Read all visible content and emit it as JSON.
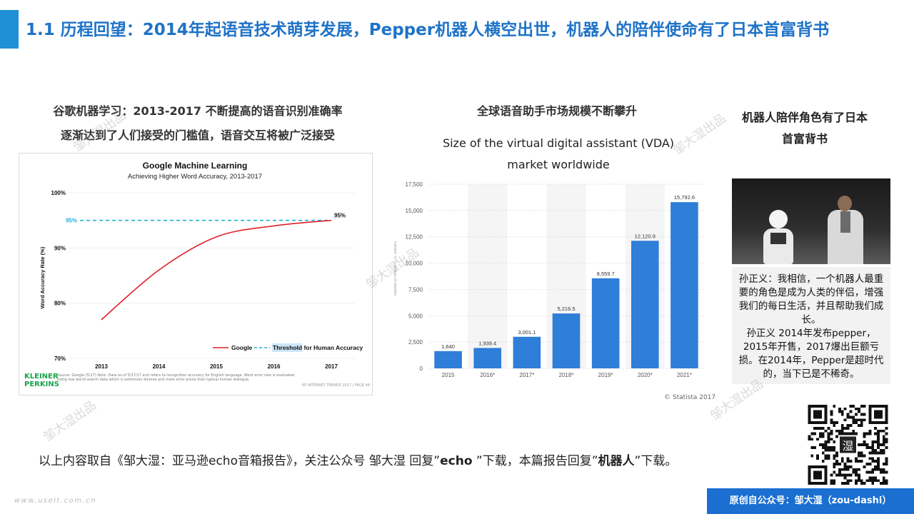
{
  "title": "1.1 历程回望：2014年起语音技术萌芽发展，Pepper机器人横空出世，机器人的陪伴使命有了日本首富背书",
  "left_section": {
    "heading_line1": "谷歌机器学习：2013-2017 不断提高的语音识别准确率",
    "heading_line2": "逐渐达到了人们接受的门槛值，语音交互将被广泛接受",
    "logo_line1": "KLEINER",
    "logo_line2": "PERKINS",
    "source_text": "Source: Google (5/17) Note: Data as of 5/17/17 and refers to recognition accuracy for English language. Word error rate is evaluated using real world search data which is extremely diverse and more error prone than typical human dialogue.",
    "footer_text": "KP INTERNET TRENDS 2017  |  PAGE 48"
  },
  "middle_section": {
    "heading": "全球语音助手市场规模不断攀升",
    "chart_title_line1": "Size of the virtual  digital assistant (VDA)",
    "chart_title_line2": "market worldwide",
    "credit": "© Statista 2017"
  },
  "right_section": {
    "heading_line1": "机器人陪伴角色有了日本",
    "heading_line2": "首富背书",
    "quote_para1": "孙正义：我相信，一个机器人最重要的角色是成为人类的伴侣，增强我们的每日生活，并且帮助我们成长。",
    "quote_para2": "孙正义 2014年发布pepper，2015年开售，2017爆出巨额亏损。在2014年，Pepper是超时代的，当下已是不稀奇。",
    "qr_center": "湿"
  },
  "footnote": {
    "prefix": "以上内容取自《邹大湿：亚马逊echo音箱报告》，关注公众号 邹大湿 回复”",
    "kw1": "echo",
    "middle": " ”下载，本篇报告回复”",
    "kw2": "机器人",
    "suffix": "”下载。"
  },
  "watermark_text": "邹大湿出品",
  "site_watermark": "www.useit.com.cn",
  "origin_badge": "原创自公众号：邹大湿（zou-dashi）",
  "colors": {
    "title": "#1f73c7",
    "accent_bar": "#1f8fd6",
    "google_line": "#e0202a",
    "threshold_line": "#1fb0d6",
    "bar": "#2f7ed8",
    "badge": "#1a6fd1"
  },
  "chart_data": [
    {
      "type": "line",
      "title": "Google Machine Learning",
      "subtitle": "Achieving Higher Word Accuracy, 2013-2017",
      "xlabel": "",
      "ylabel": "Word Accuracy Rate (%)",
      "x": [
        "2013",
        "2014",
        "2015",
        "2016",
        "2017"
      ],
      "ylim": [
        70,
        100
      ],
      "yticks": [
        "100%",
        "90%",
        "80%",
        "70%"
      ],
      "ytick_values": [
        100,
        90,
        80,
        70
      ],
      "series": [
        {
          "name": "Google",
          "values": [
            77,
            86,
            92,
            94,
            95
          ],
          "end_label": "95%"
        },
        {
          "name": "Threshold for Human Accuracy",
          "values": [
            95,
            95,
            95,
            95,
            95
          ],
          "start_label": "95%"
        }
      ],
      "legend_position": "bottom-right",
      "legend": [
        {
          "name": "Google"
        },
        {
          "name_highlight": "Threshold",
          "name_rest": " for Human Accuracy"
        }
      ]
    },
    {
      "type": "bar",
      "title": "Size of the virtual  digital assistant (VDA) market worldwide",
      "ylabel": "Market in million U.S. dollars",
      "categories": [
        "2015",
        "2016*",
        "2017*",
        "2018*",
        "2019*",
        "2020*",
        "2021*"
      ],
      "values": [
        1640,
        1939.4,
        3001.1,
        5216.5,
        8559.7,
        12120.9,
        15792.6
      ],
      "value_labels": [
        "1,640",
        "1,939.4",
        "3,001.1",
        "5,216.5",
        "8,559.7",
        "12,120.9",
        "15,792.6"
      ],
      "ylim": [
        0,
        17500
      ],
      "ytick_values": [
        0,
        2500,
        5000,
        7500,
        10000,
        12500,
        15000,
        17500
      ],
      "yticks": [
        "0",
        "2,500",
        "5,000",
        "7,500",
        "10,000",
        "12,500",
        "15,000",
        "17,500"
      ]
    }
  ]
}
